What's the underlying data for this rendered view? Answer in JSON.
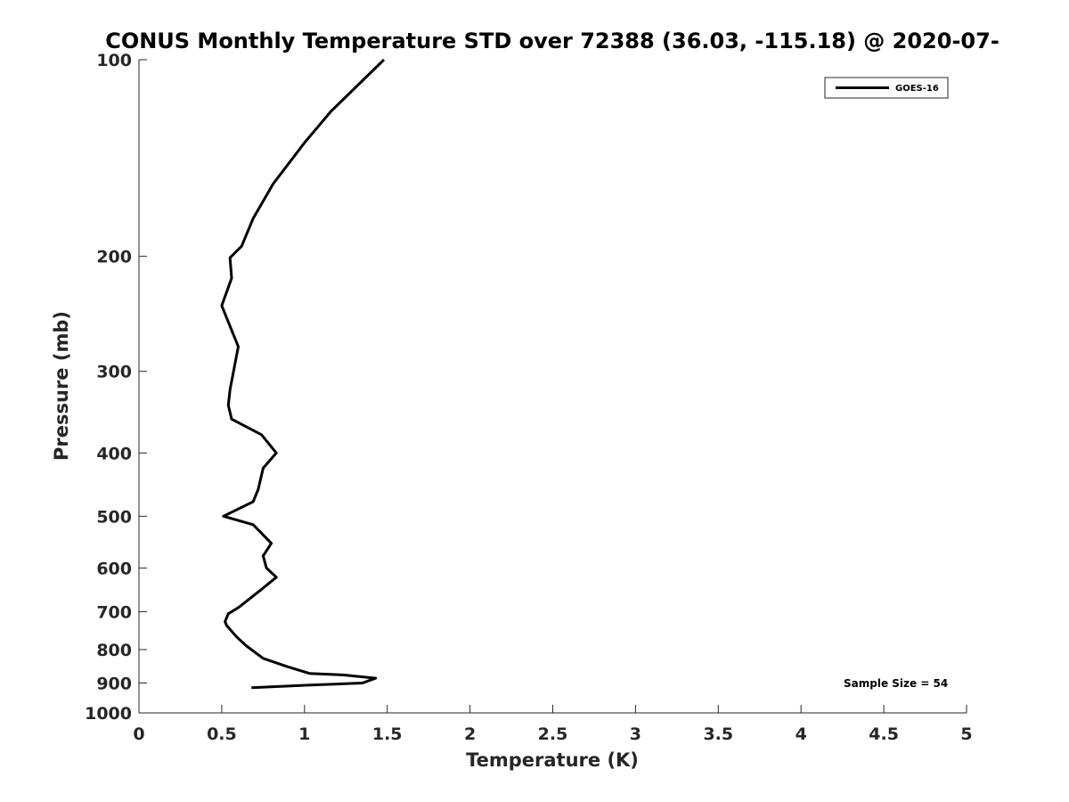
{
  "chart_data": {
    "type": "line",
    "title": "CONUS Monthly Temperature STD over 72388 (36.03, -115.18) @ 2020-07-",
    "xlabel": "Temperature (K)",
    "ylabel": "Pressure (mb)",
    "xlim": [
      0,
      5
    ],
    "ylim": [
      1000,
      100
    ],
    "y_scale": "log",
    "y_reversed": true,
    "grid": false,
    "legend_position": "top-right",
    "x_ticks": [
      "0",
      "0.5",
      "1",
      "1.5",
      "2",
      "2.5",
      "3",
      "3.5",
      "4",
      "4.5",
      "5"
    ],
    "y_ticks": [
      "100",
      "200",
      "300",
      "400",
      "500",
      "600",
      "700",
      "800",
      "900",
      "1000"
    ],
    "line_color": "#000000",
    "series": [
      {
        "name": "GOES-16",
        "points": [
          {
            "x": 1.48,
            "y": 100
          },
          {
            "x": 1.16,
            "y": 120
          },
          {
            "x": 1.0,
            "y": 134
          },
          {
            "x": 0.81,
            "y": 155
          },
          {
            "x": 0.69,
            "y": 175
          },
          {
            "x": 0.62,
            "y": 193
          },
          {
            "x": 0.55,
            "y": 201
          },
          {
            "x": 0.56,
            "y": 216
          },
          {
            "x": 0.5,
            "y": 238
          },
          {
            "x": 0.6,
            "y": 275
          },
          {
            "x": 0.55,
            "y": 320
          },
          {
            "x": 0.54,
            "y": 338
          },
          {
            "x": 0.56,
            "y": 355
          },
          {
            "x": 0.74,
            "y": 375
          },
          {
            "x": 0.83,
            "y": 400
          },
          {
            "x": 0.75,
            "y": 422
          },
          {
            "x": 0.72,
            "y": 455
          },
          {
            "x": 0.69,
            "y": 475
          },
          {
            "x": 0.51,
            "y": 500
          },
          {
            "x": 0.69,
            "y": 515
          },
          {
            "x": 0.8,
            "y": 550
          },
          {
            "x": 0.75,
            "y": 575
          },
          {
            "x": 0.77,
            "y": 600
          },
          {
            "x": 0.83,
            "y": 620
          },
          {
            "x": 0.73,
            "y": 650
          },
          {
            "x": 0.6,
            "y": 690
          },
          {
            "x": 0.54,
            "y": 705
          },
          {
            "x": 0.52,
            "y": 725
          },
          {
            "x": 0.53,
            "y": 735
          },
          {
            "x": 0.59,
            "y": 765
          },
          {
            "x": 0.65,
            "y": 790
          },
          {
            "x": 0.75,
            "y": 825
          },
          {
            "x": 0.9,
            "y": 850
          },
          {
            "x": 1.03,
            "y": 870
          },
          {
            "x": 1.24,
            "y": 875
          },
          {
            "x": 1.43,
            "y": 885
          },
          {
            "x": 1.35,
            "y": 900
          },
          {
            "x": 1.02,
            "y": 907
          },
          {
            "x": 0.68,
            "y": 915
          }
        ]
      }
    ],
    "annotation": "Sample Size = 54"
  }
}
